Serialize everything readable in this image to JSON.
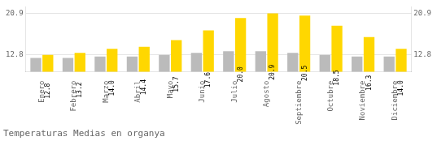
{
  "chart_data": {
    "type": "bar",
    "title": "Temperaturas Medias en organya",
    "categories": [
      "Enero",
      "Febrero",
      "Marzo",
      "Abril",
      "Mayo",
      "Junio",
      "Julio",
      "Agosto",
      "Septiembre",
      "Octubre",
      "Noviembre",
      "Diciembre"
    ],
    "series": [
      {
        "color": "#BBBBBB",
        "values": [
          12.2,
          12.2,
          12.5,
          12.5,
          12.8,
          13.2,
          13.5,
          13.5,
          13.2,
          12.8,
          12.5,
          12.5
        ]
      },
      {
        "color": "#FFD700",
        "values": [
          12.8,
          13.2,
          14.0,
          14.4,
          15.7,
          17.6,
          20.0,
          20.9,
          20.5,
          18.5,
          16.3,
          14.0
        ],
        "data_labels": true,
        "value_labels": [
          "12.8",
          "13.2",
          "14.0",
          "14.4",
          "15.7",
          "17.6",
          "20.0",
          "20.9",
          "20.5",
          "18.5",
          "16.3",
          "14.0"
        ]
      }
    ],
    "ylim": [
      9.5,
      22.2
    ],
    "yticks": [
      12.8,
      20.9
    ],
    "y2lim": [
      9.5,
      22.2
    ],
    "y2ticks": [
      12.8,
      20.9
    ],
    "grid": true
  }
}
